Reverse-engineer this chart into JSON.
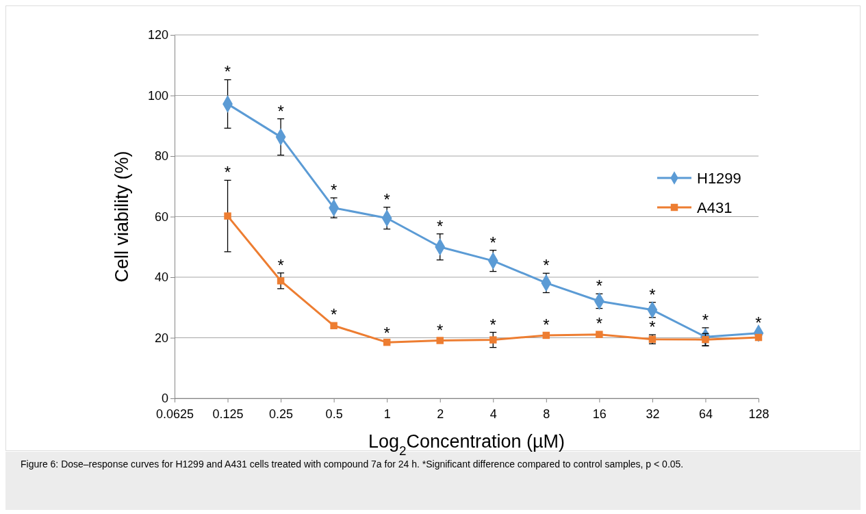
{
  "chart_data": {
    "type": "line",
    "xlabel": "Log$_{2}$Concentration (µM)",
    "ylabel": "Cell viability (%)",
    "x": [
      0.125,
      0.25,
      0.5,
      1,
      2,
      4,
      8,
      16,
      32,
      64,
      128
    ],
    "log": "x",
    "xlim": [
      0.0625,
      128
    ],
    "xticks": [
      0.0625,
      0.125,
      0.25,
      0.5,
      1,
      2,
      4,
      8,
      16,
      32,
      64,
      128
    ],
    "ylim": [
      0,
      120
    ],
    "yticks": [
      0,
      20,
      40,
      60,
      80,
      100,
      120
    ],
    "grid": "y",
    "legend": "right",
    "series": [
      {
        "name": "H1299",
        "color": "#5b9bd5",
        "marker": "diamond",
        "values": [
          97.2,
          86.3,
          62.9,
          59.5,
          50,
          45.4,
          38.1,
          32.1,
          29.2,
          20.3,
          21.5
        ],
        "errors": [
          8,
          6,
          3.3,
          3.6,
          4.3,
          3.5,
          3.2,
          2.4,
          2.5,
          3,
          null
        ]
      },
      {
        "name": "A431",
        "color": "#ed7d31",
        "marker": "square",
        "values": [
          60.2,
          38.8,
          24,
          18.5,
          19.1,
          19.3,
          20.8,
          21.1,
          19.5,
          19.4,
          20.1
        ],
        "errors": [
          11.8,
          2.6,
          null,
          null,
          null,
          2.5,
          null,
          null,
          1.5,
          2,
          null
        ]
      }
    ],
    "annotations": [
      {
        "text": "*",
        "x": 0.125,
        "y": 105.2
      },
      {
        "text": "*",
        "x": 0.25,
        "y": 92.3
      },
      {
        "text": "*",
        "x": 0.5,
        "y": 66.2
      },
      {
        "text": "*",
        "x": 1,
        "y": 63.1
      },
      {
        "text": "*",
        "x": 2,
        "y": 54.3
      },
      {
        "text": "*",
        "x": 4,
        "y": 48.9
      },
      {
        "text": "*",
        "x": 8,
        "y": 41.3
      },
      {
        "text": "*",
        "x": 16,
        "y": 34.5
      },
      {
        "text": "*",
        "x": 32,
        "y": 31.7
      },
      {
        "text": "*",
        "x": 64,
        "y": 23.3
      },
      {
        "text": "*",
        "x": 128,
        "y": 22.4
      },
      {
        "text": "*",
        "x": 0.125,
        "y": 72
      },
      {
        "text": "*",
        "x": 0.25,
        "y": 41.4
      },
      {
        "text": "*",
        "x": 0.5,
        "y": 25
      },
      {
        "text": "*",
        "x": 1,
        "y": 19
      },
      {
        "text": "*",
        "x": 2,
        "y": 19.9
      },
      {
        "text": "*",
        "x": 4,
        "y": 21.8
      },
      {
        "text": "*",
        "x": 8,
        "y": 21.6
      },
      {
        "text": "*",
        "x": 16,
        "y": 22.1
      },
      {
        "text": "*",
        "x": 32,
        "y": 21
      },
      "Figure 6: Dose–response curves for H1299 and A431 cells treated with compound 7a for 24 h. *Significant difference compared to control samples, p < 0.05."
    ]
  }
}
